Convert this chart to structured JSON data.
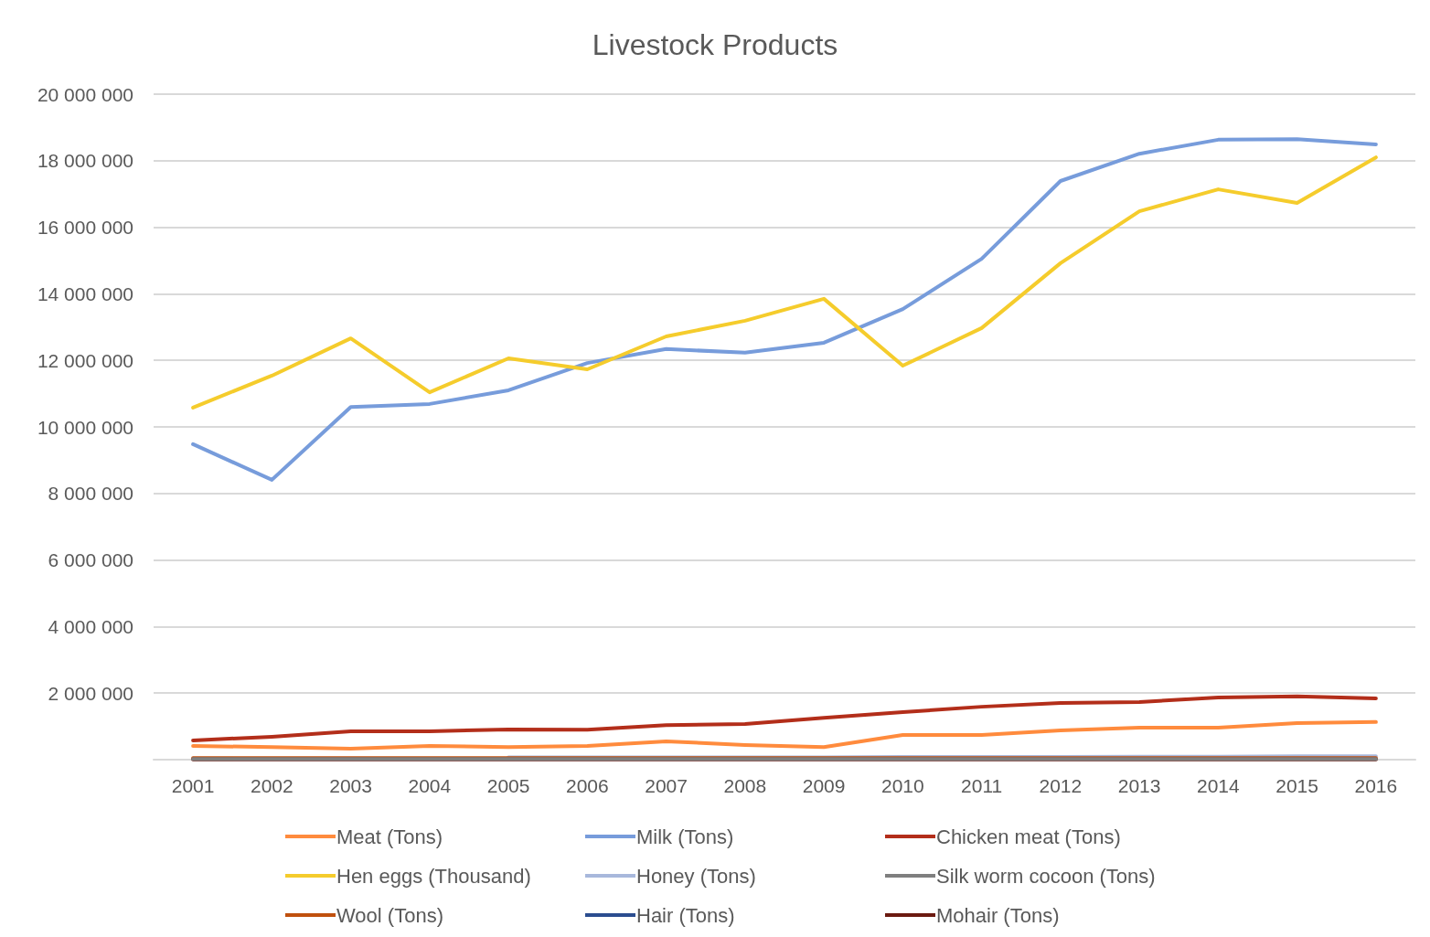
{
  "chart_data": {
    "type": "line",
    "title": "Livestock Products",
    "categories": [
      "2001",
      "2002",
      "2003",
      "2004",
      "2005",
      "2006",
      "2007",
      "2008",
      "2009",
      "2010",
      "2011",
      "2012",
      "2013",
      "2014",
      "2015",
      "2016"
    ],
    "series": [
      {
        "name": "Meat (Tons)",
        "color": "#ff8b3d",
        "values": [
          410000,
          380000,
          330000,
          410000,
          380000,
          410000,
          550000,
          440000,
          380000,
          740000,
          740000,
          880000,
          960000,
          960000,
          1100000,
          1130000
        ]
      },
      {
        "name": "Milk (Tons)",
        "color": "#779cdb",
        "values": [
          9480000,
          8410000,
          10600000,
          10690000,
          11100000,
          11920000,
          12340000,
          12230000,
          12530000,
          13540000,
          15050000,
          17390000,
          18210000,
          18630000,
          18650000,
          18490000
        ]
      },
      {
        "name": "Chicken meat (Tons)",
        "color": "#b32e1a",
        "values": [
          580000,
          690000,
          850000,
          850000,
          910000,
          900000,
          1040000,
          1070000,
          1260000,
          1430000,
          1590000,
          1700000,
          1730000,
          1870000,
          1900000,
          1840000
        ]
      },
      {
        "name": "Hen eggs (Thousand)",
        "color": "#f5cc2c",
        "values": [
          10580000,
          11540000,
          12660000,
          11040000,
          12060000,
          11730000,
          12720000,
          13190000,
          13850000,
          11840000,
          12970000,
          14920000,
          16480000,
          17140000,
          16730000,
          18100000
        ]
      },
      {
        "name": "Honey (Tons)",
        "color": "#a8b8dc",
        "values": [
          null,
          null,
          null,
          null,
          70000,
          70000,
          70000,
          70000,
          70000,
          80000,
          80000,
          80000,
          90000,
          90000,
          100000,
          100000
        ]
      },
      {
        "name": "Silk worm cocoon (Tons)",
        "color": "#7f7f7f",
        "values": [
          20000,
          20000,
          20000,
          20000,
          20000,
          20000,
          20000,
          20000,
          20000,
          20000,
          20000,
          20000,
          20000,
          20000,
          20000,
          20000
        ]
      },
      {
        "name": "Wool (Tons)",
        "color": "#c0500e",
        "values": [
          50000,
          50000,
          50000,
          50000,
          50000,
          50000,
          50000,
          50000,
          50000,
          50000,
          50000,
          50000,
          50000,
          50000,
          50000,
          50000
        ]
      },
      {
        "name": "Hair (Tons)",
        "color": "#2b4d8f",
        "values": [
          null,
          null,
          null,
          null,
          null,
          null,
          null,
          null,
          null,
          null,
          null,
          null,
          null,
          null,
          null,
          null
        ]
      },
      {
        "name": "Mohair (Tons)",
        "color": "#6b1a10",
        "values": [
          10000,
          10000,
          10000,
          10000,
          10000,
          10000,
          10000,
          10000,
          10000,
          10000,
          10000,
          10000,
          10000,
          10000,
          10000,
          10000
        ]
      }
    ],
    "ylim": [
      0,
      20000000
    ],
    "yticks": [
      {
        "value": 0,
        "label": null
      },
      {
        "value": 2000000,
        "label": "2 000 000"
      },
      {
        "value": 4000000,
        "label": "4 000 000"
      },
      {
        "value": 6000000,
        "label": "6 000 000"
      },
      {
        "value": 8000000,
        "label": "8 000 000"
      },
      {
        "value": 10000000,
        "label": "10 000 000"
      },
      {
        "value": 12000000,
        "label": "12 000 000"
      },
      {
        "value": 14000000,
        "label": "14 000 000"
      },
      {
        "value": 16000000,
        "label": "16 000 000"
      },
      {
        "value": 18000000,
        "label": "18 000 000"
      },
      {
        "value": 20000000,
        "label": "20 000 000"
      }
    ],
    "grid": "y",
    "legend": "bottom",
    "marker": "none",
    "line_style": "solid"
  }
}
